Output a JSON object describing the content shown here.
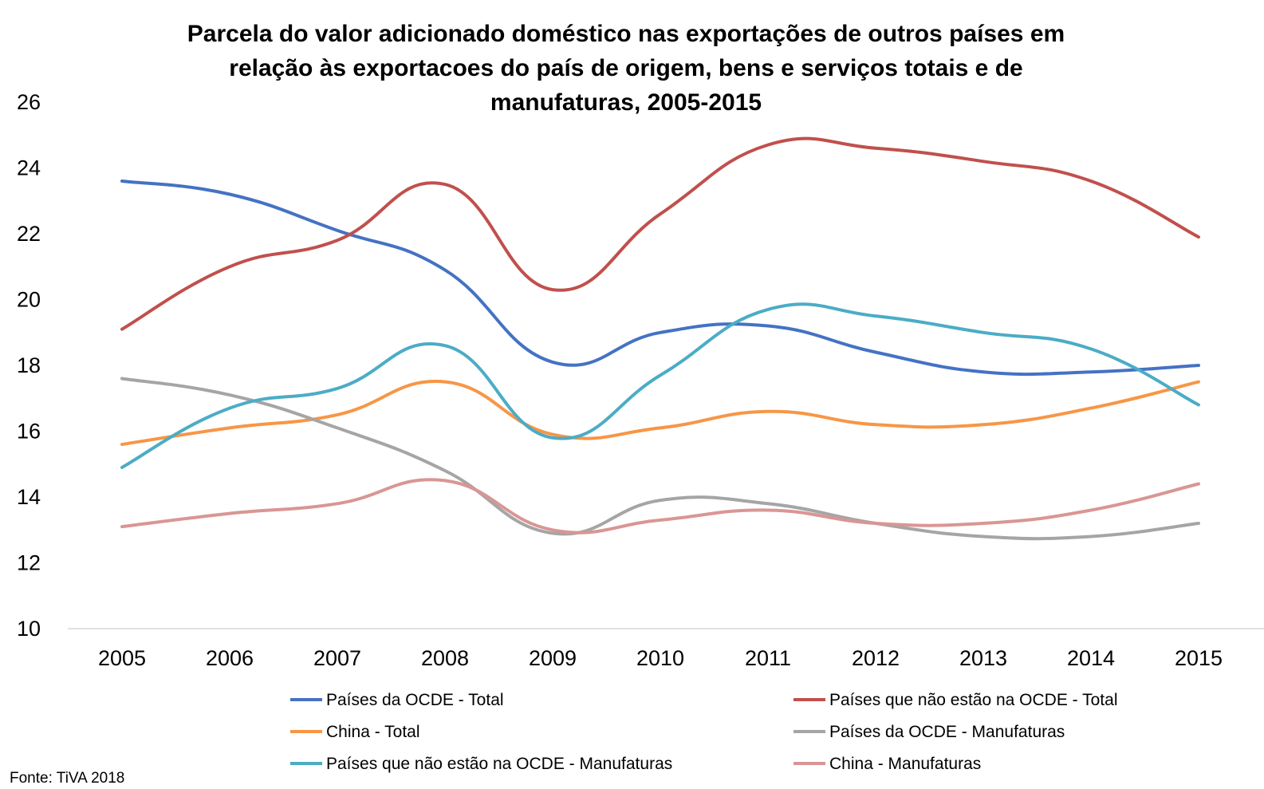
{
  "chart_data": {
    "type": "line",
    "smooth": true,
    "title": [
      "Parcela do valor adicionado doméstico nas exportações de outros países em",
      "relação às exportacoes do país de origem, bens e serviços totais e de",
      "manufaturas, 2005-2015"
    ],
    "source": "Fonte: TiVA 2018",
    "x": [
      "2005",
      "2006",
      "2007",
      "2008",
      "2009",
      "2010",
      "2011",
      "2012",
      "2013",
      "2014",
      "2015"
    ],
    "ylim": [
      10,
      26
    ],
    "yticks": [
      "10",
      "12",
      "14",
      "16",
      "18",
      "20",
      "22",
      "24",
      "26"
    ],
    "grid": false,
    "legend_position": "bottom",
    "series": [
      {
        "name": "Países da OCDE - Total",
        "color": "#4472C4",
        "values": [
          23.6,
          23.2,
          22.1,
          20.9,
          18.1,
          19.0,
          19.2,
          18.4,
          17.8,
          17.8,
          18.0
        ]
      },
      {
        "name": "Países que não estão na OCDE - Total",
        "color": "#C0504D",
        "values": [
          19.1,
          21.0,
          21.8,
          23.5,
          20.3,
          22.6,
          24.7,
          24.6,
          24.2,
          23.6,
          21.9
        ]
      },
      {
        "name": "China - Total",
        "color": "#F79646",
        "values": [
          15.6,
          16.1,
          16.5,
          17.5,
          15.9,
          16.1,
          16.6,
          16.2,
          16.2,
          16.7,
          17.5
        ]
      },
      {
        "name": "Países da OCDE - Manufaturas",
        "color": "#A5A5A5",
        "values": [
          17.6,
          17.1,
          16.1,
          14.8,
          12.9,
          13.9,
          13.8,
          13.2,
          12.8,
          12.8,
          13.2
        ]
      },
      {
        "name": "Países que não estão na OCDE - Manufaturas",
        "color": "#4BACC6",
        "values": [
          14.9,
          16.7,
          17.3,
          18.6,
          15.8,
          17.7,
          19.7,
          19.5,
          19.0,
          18.5,
          16.8
        ]
      },
      {
        "name": "China - Manufaturas",
        "color": "#D99694",
        "values": [
          13.1,
          13.5,
          13.8,
          14.5,
          13.0,
          13.3,
          13.6,
          13.2,
          13.2,
          13.6,
          14.4
        ]
      }
    ]
  }
}
